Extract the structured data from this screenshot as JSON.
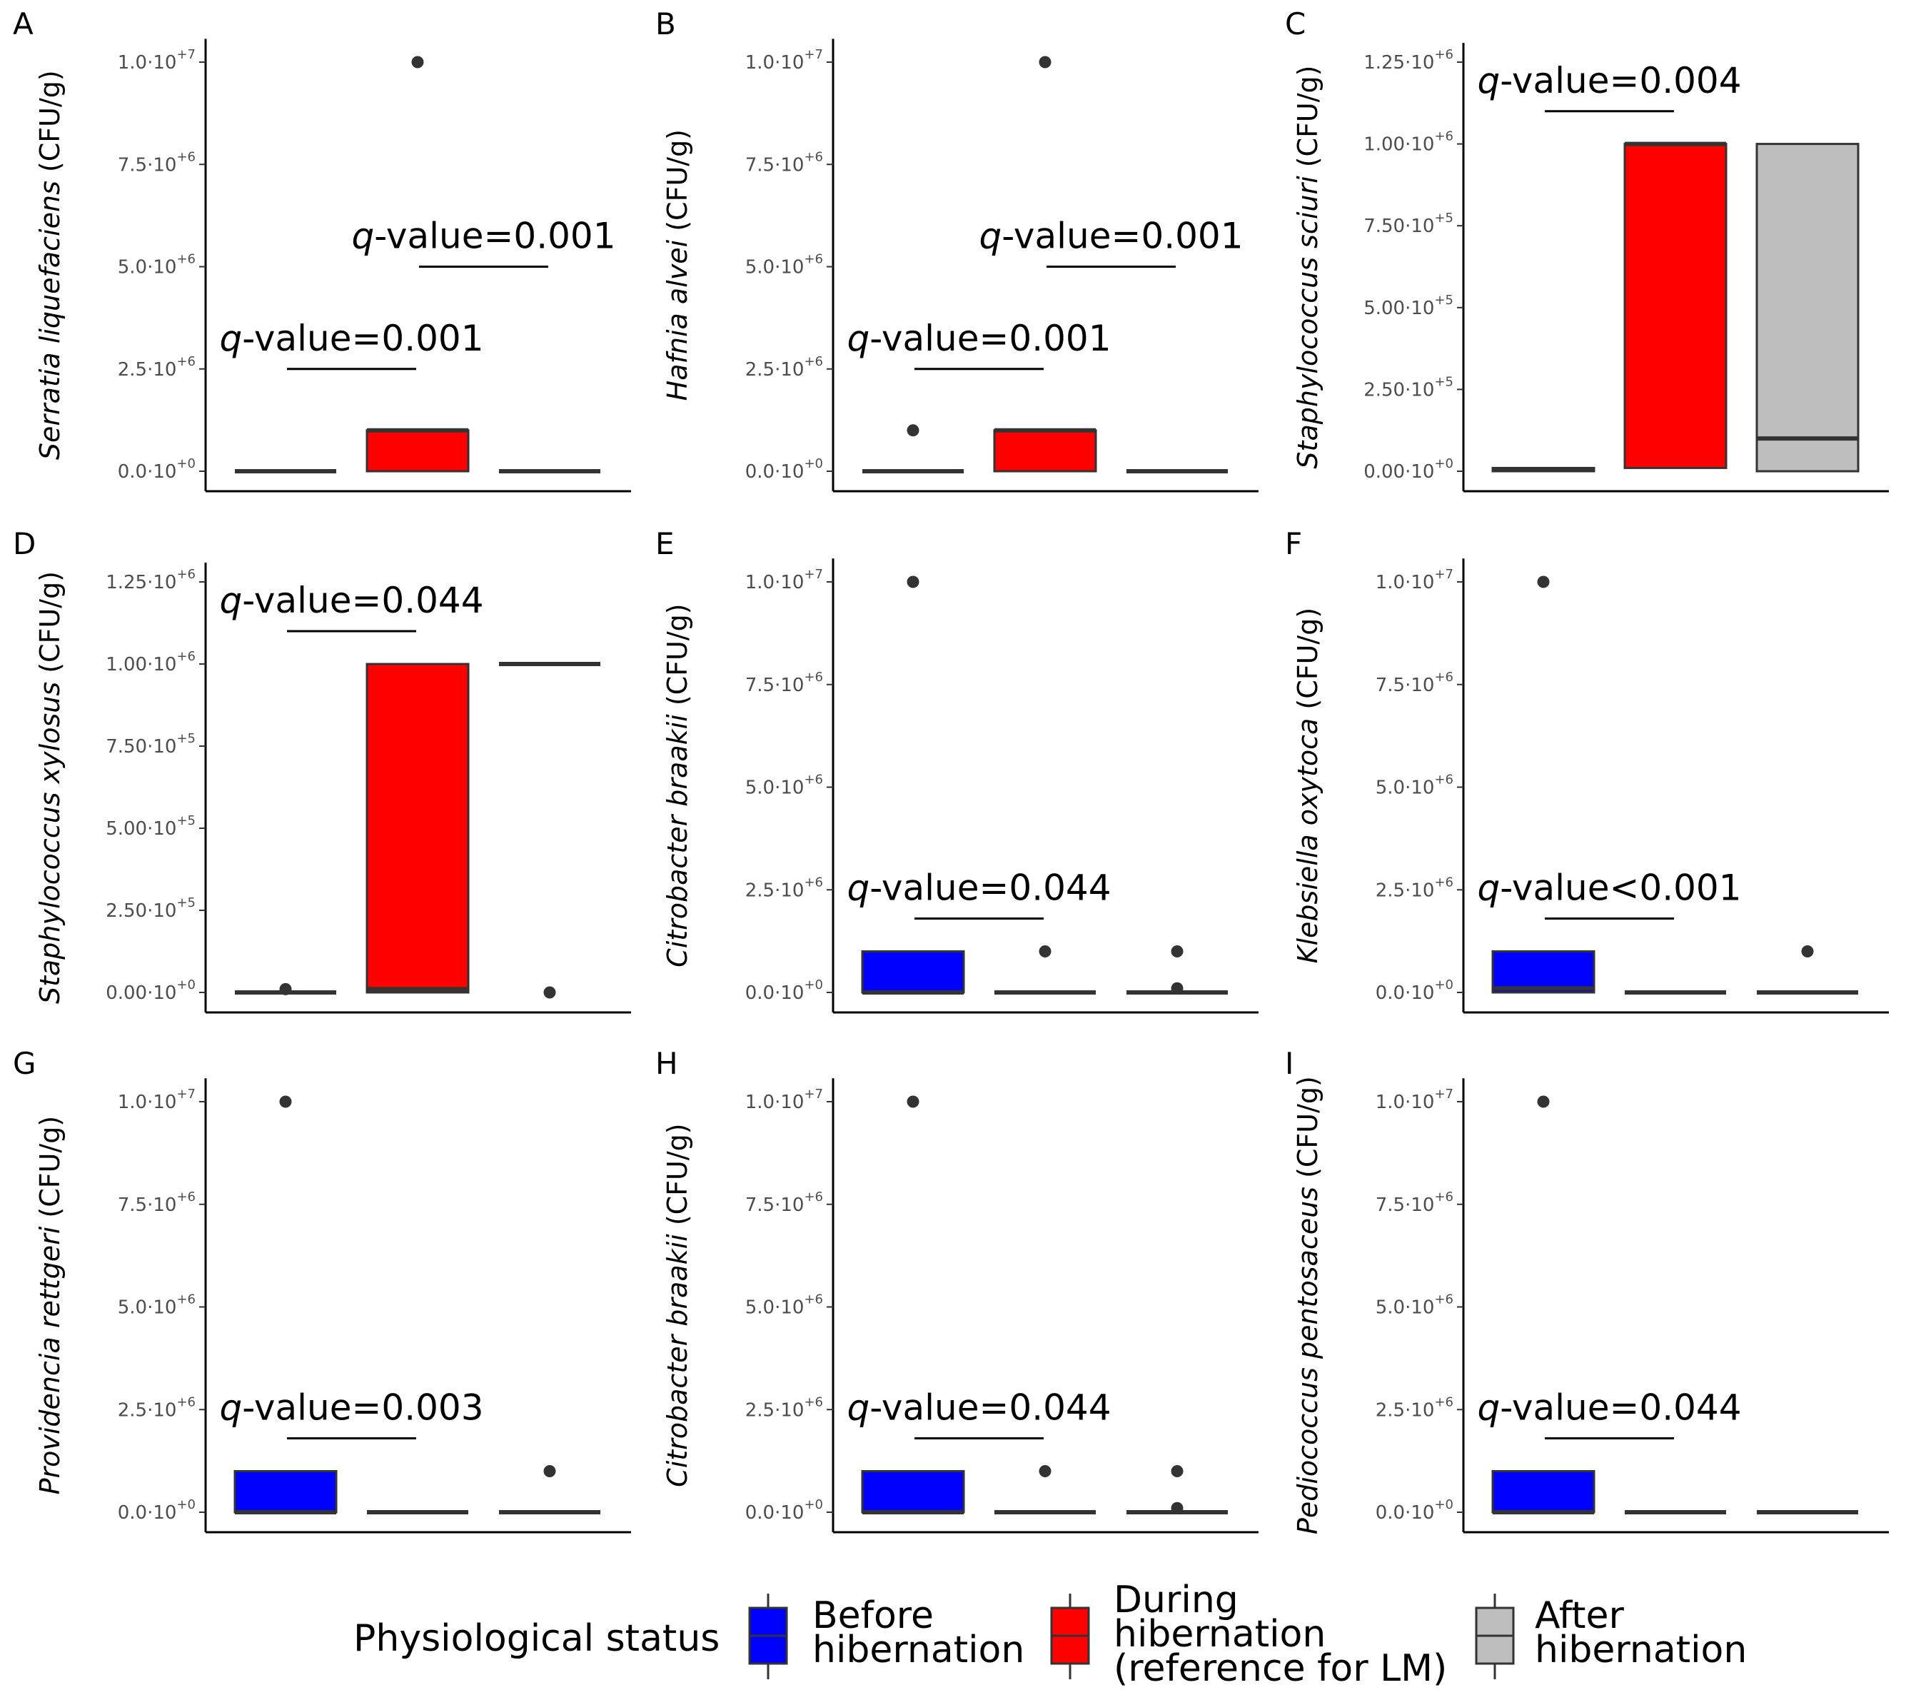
{
  "chart_data": [
    {
      "panel": "A",
      "type": "box",
      "ylabel_species": "Serratia liquefaciens",
      "ylabel_unit": " (CFU/g)",
      "ylim": [
        0,
        10500000
      ],
      "ticks": [
        {
          "v": 0,
          "mant": "0.0",
          "exp": "+0"
        },
        {
          "v": 2500000,
          "mant": "2.5",
          "exp": "+6"
        },
        {
          "v": 5000000,
          "mant": "5.0",
          "exp": "+6"
        },
        {
          "v": 7500000,
          "mant": "7.5",
          "exp": "+6"
        },
        {
          "v": 10000000,
          "mant": "1.0",
          "exp": "+7"
        }
      ],
      "boxes": [
        {
          "group": "Before hibernation",
          "color": "#0000ff",
          "q1": 0,
          "median": 0,
          "q3": 0,
          "outliers": []
        },
        {
          "group": "During hibernation",
          "color": "#ff0000",
          "q1": 0,
          "median": 1000000,
          "q3": 1000000,
          "outliers": [
            10000000
          ]
        },
        {
          "group": "After hibernation",
          "color": "#bebebe",
          "q1": 0,
          "median": 0,
          "q3": 0,
          "outliers": []
        }
      ],
      "annotations": [
        {
          "from": 0,
          "to": 1,
          "y": 2500000,
          "label": "-value=0.001"
        },
        {
          "from": 1,
          "to": 2,
          "y": 5000000,
          "label": "-value=0.001"
        }
      ]
    },
    {
      "panel": "B",
      "type": "box",
      "ylabel_species": "Hafnia alvei",
      "ylabel_unit": " (CFU/g)",
      "ylim": [
        0,
        10500000
      ],
      "ticks": [
        {
          "v": 0,
          "mant": "0.0",
          "exp": "+0"
        },
        {
          "v": 2500000,
          "mant": "2.5",
          "exp": "+6"
        },
        {
          "v": 5000000,
          "mant": "5.0",
          "exp": "+6"
        },
        {
          "v": 7500000,
          "mant": "7.5",
          "exp": "+6"
        },
        {
          "v": 10000000,
          "mant": "1.0",
          "exp": "+7"
        }
      ],
      "boxes": [
        {
          "group": "Before hibernation",
          "color": "#0000ff",
          "q1": 0,
          "median": 0,
          "q3": 0,
          "outliers": [
            1000000
          ]
        },
        {
          "group": "During hibernation",
          "color": "#ff0000",
          "q1": 0,
          "median": 1000000,
          "q3": 1000000,
          "outliers": [
            10000000
          ]
        },
        {
          "group": "After hibernation",
          "color": "#bebebe",
          "q1": 0,
          "median": 0,
          "q3": 0,
          "outliers": []
        }
      ],
      "annotations": [
        {
          "from": 0,
          "to": 1,
          "y": 2500000,
          "label": "-value=0.001"
        },
        {
          "from": 1,
          "to": 2,
          "y": 5000000,
          "label": "-value=0.001"
        }
      ]
    },
    {
      "panel": "C",
      "type": "box",
      "ylabel_species": "Staphylococcus sciuri",
      "ylabel_unit": " (CFU/g)",
      "ylim": [
        0,
        1300000
      ],
      "ticks": [
        {
          "v": 0,
          "mant": "0.00",
          "exp": "+0"
        },
        {
          "v": 250000,
          "mant": "2.50",
          "exp": "+5"
        },
        {
          "v": 500000,
          "mant": "5.00",
          "exp": "+5"
        },
        {
          "v": 750000,
          "mant": "7.50",
          "exp": "+5"
        },
        {
          "v": 1000000,
          "mant": "1.00",
          "exp": "+6"
        },
        {
          "v": 1250000,
          "mant": "1.25",
          "exp": "+6"
        }
      ],
      "boxes": [
        {
          "group": "Before hibernation",
          "color": "#0000ff",
          "q1": 0,
          "median": 5000,
          "q3": 10000,
          "outliers": []
        },
        {
          "group": "During hibernation",
          "color": "#ff0000",
          "q1": 10000,
          "median": 1000000,
          "q3": 1000000,
          "outliers": []
        },
        {
          "group": "After hibernation",
          "color": "#bebebe",
          "q1": 0,
          "median": 100000,
          "q3": 1000000,
          "outliers": []
        }
      ],
      "annotations": [
        {
          "from": 0,
          "to": 1,
          "y": 1100000,
          "label": "-value=0.004"
        }
      ]
    },
    {
      "panel": "D",
      "type": "box",
      "ylabel_species": "Staphylococcus xylosus",
      "ylabel_unit": " (CFU/g)",
      "ylim": [
        0,
        1300000
      ],
      "ticks": [
        {
          "v": 0,
          "mant": "0.00",
          "exp": "+0"
        },
        {
          "v": 250000,
          "mant": "2.50",
          "exp": "+5"
        },
        {
          "v": 500000,
          "mant": "5.00",
          "exp": "+5"
        },
        {
          "v": 750000,
          "mant": "7.50",
          "exp": "+5"
        },
        {
          "v": 1000000,
          "mant": "1.00",
          "exp": "+6"
        },
        {
          "v": 1250000,
          "mant": "1.25",
          "exp": "+6"
        }
      ],
      "boxes": [
        {
          "group": "Before hibernation",
          "color": "#0000ff",
          "q1": 0,
          "median": 0,
          "q3": 0,
          "outliers": [
            10000
          ]
        },
        {
          "group": "During hibernation",
          "color": "#ff0000",
          "q1": 0,
          "median": 10000,
          "q3": 1000000,
          "outliers": []
        },
        {
          "group": "After hibernation",
          "color": "#bebebe",
          "q1": 1000000,
          "median": 1000000,
          "q3": 1000000,
          "outliers": [
            0
          ]
        }
      ],
      "annotations": [
        {
          "from": 0,
          "to": 1,
          "y": 1100000,
          "label": "-value=0.044"
        }
      ]
    },
    {
      "panel": "E",
      "type": "box",
      "ylabel_species": "Citrobacter braakii",
      "ylabel_unit": " (CFU/g)",
      "ylim": [
        0,
        10500000
      ],
      "ticks": [
        {
          "v": 0,
          "mant": "0.0",
          "exp": "+0"
        },
        {
          "v": 2500000,
          "mant": "2.5",
          "exp": "+6"
        },
        {
          "v": 5000000,
          "mant": "5.0",
          "exp": "+6"
        },
        {
          "v": 7500000,
          "mant": "7.5",
          "exp": "+6"
        },
        {
          "v": 10000000,
          "mant": "1.0",
          "exp": "+7"
        }
      ],
      "boxes": [
        {
          "group": "Before hibernation",
          "color": "#0000ff",
          "q1": 0,
          "median": 0,
          "q3": 1000000,
          "outliers": [
            10000000
          ]
        },
        {
          "group": "During hibernation",
          "color": "#ff0000",
          "q1": 0,
          "median": 0,
          "q3": 0,
          "outliers": [
            1000000
          ]
        },
        {
          "group": "After hibernation",
          "color": "#bebebe",
          "q1": 0,
          "median": 0,
          "q3": 0,
          "outliers": [
            1000000,
            100000
          ]
        }
      ],
      "annotations": [
        {
          "from": 0,
          "to": 1,
          "y": 1800000,
          "label": "-value=0.044"
        }
      ]
    },
    {
      "panel": "F",
      "type": "box",
      "ylabel_species": "Klebsiella oxytoca",
      "ylabel_unit": " (CFU/g)",
      "ylim": [
        0,
        10500000
      ],
      "ticks": [
        {
          "v": 0,
          "mant": "0.0",
          "exp": "+0"
        },
        {
          "v": 2500000,
          "mant": "2.5",
          "exp": "+6"
        },
        {
          "v": 5000000,
          "mant": "5.0",
          "exp": "+6"
        },
        {
          "v": 7500000,
          "mant": "7.5",
          "exp": "+6"
        },
        {
          "v": 10000000,
          "mant": "1.0",
          "exp": "+7"
        }
      ],
      "boxes": [
        {
          "group": "Before hibernation",
          "color": "#0000ff",
          "q1": 0,
          "median": 100000,
          "q3": 1000000,
          "outliers": [
            10000000
          ]
        },
        {
          "group": "During hibernation",
          "color": "#ff0000",
          "q1": 0,
          "median": 0,
          "q3": 0,
          "outliers": []
        },
        {
          "group": "After hibernation",
          "color": "#bebebe",
          "q1": 0,
          "median": 0,
          "q3": 0,
          "outliers": [
            1000000
          ]
        }
      ],
      "annotations": [
        {
          "from": 0,
          "to": 1,
          "y": 1800000,
          "label": "-value<0.001"
        }
      ]
    },
    {
      "panel": "G",
      "type": "box",
      "ylabel_species": "Providencia rettgeri",
      "ylabel_unit": " (CFU/g)",
      "ylim": [
        0,
        10500000
      ],
      "ticks": [
        {
          "v": 0,
          "mant": "0.0",
          "exp": "+0"
        },
        {
          "v": 2500000,
          "mant": "2.5",
          "exp": "+6"
        },
        {
          "v": 5000000,
          "mant": "5.0",
          "exp": "+6"
        },
        {
          "v": 7500000,
          "mant": "7.5",
          "exp": "+6"
        },
        {
          "v": 10000000,
          "mant": "1.0",
          "exp": "+7"
        }
      ],
      "boxes": [
        {
          "group": "Before hibernation",
          "color": "#0000ff",
          "q1": 0,
          "median": 0,
          "q3": 1000000,
          "outliers": [
            10000000
          ]
        },
        {
          "group": "During hibernation",
          "color": "#ff0000",
          "q1": 0,
          "median": 0,
          "q3": 0,
          "outliers": []
        },
        {
          "group": "After hibernation",
          "color": "#bebebe",
          "q1": 0,
          "median": 0,
          "q3": 0,
          "outliers": [
            1000000
          ]
        }
      ],
      "annotations": [
        {
          "from": 0,
          "to": 1,
          "y": 1800000,
          "label": "-value=0.003"
        }
      ]
    },
    {
      "panel": "H",
      "type": "box",
      "ylabel_species": "Citrobacter braakii",
      "ylabel_unit": " (CFU/g)",
      "ylim": [
        0,
        10500000
      ],
      "ticks": [
        {
          "v": 0,
          "mant": "0.0",
          "exp": "+0"
        },
        {
          "v": 2500000,
          "mant": "2.5",
          "exp": "+6"
        },
        {
          "v": 5000000,
          "mant": "5.0",
          "exp": "+6"
        },
        {
          "v": 7500000,
          "mant": "7.5",
          "exp": "+6"
        },
        {
          "v": 10000000,
          "mant": "1.0",
          "exp": "+7"
        }
      ],
      "boxes": [
        {
          "group": "Before hibernation",
          "color": "#0000ff",
          "q1": 0,
          "median": 0,
          "q3": 1000000,
          "outliers": [
            10000000
          ]
        },
        {
          "group": "During hibernation",
          "color": "#ff0000",
          "q1": 0,
          "median": 0,
          "q3": 0,
          "outliers": [
            1000000
          ]
        },
        {
          "group": "After hibernation",
          "color": "#bebebe",
          "q1": 0,
          "median": 0,
          "q3": 0,
          "outliers": [
            1000000,
            100000
          ]
        }
      ],
      "annotations": [
        {
          "from": 0,
          "to": 1,
          "y": 1800000,
          "label": "-value=0.044"
        }
      ]
    },
    {
      "panel": "I",
      "type": "box",
      "ylabel_species": "Pediococcus pentosaceus",
      "ylabel_unit": " (CFU/g)",
      "ylim": [
        0,
        10500000
      ],
      "ticks": [
        {
          "v": 0,
          "mant": "0.0",
          "exp": "+0"
        },
        {
          "v": 2500000,
          "mant": "2.5",
          "exp": "+6"
        },
        {
          "v": 5000000,
          "mant": "5.0",
          "exp": "+6"
        },
        {
          "v": 7500000,
          "mant": "7.5",
          "exp": "+6"
        },
        {
          "v": 10000000,
          "mant": "1.0",
          "exp": "+7"
        }
      ],
      "boxes": [
        {
          "group": "Before hibernation",
          "color": "#0000ff",
          "q1": 0,
          "median": 0,
          "q3": 1000000,
          "outliers": [
            10000000
          ]
        },
        {
          "group": "During hibernation",
          "color": "#ff0000",
          "q1": 0,
          "median": 0,
          "q3": 0,
          "outliers": []
        },
        {
          "group": "After hibernation",
          "color": "#bebebe",
          "q1": 0,
          "median": 0,
          "q3": 0,
          "outliers": []
        }
      ],
      "annotations": [
        {
          "from": 0,
          "to": 1,
          "y": 1800000,
          "label": "-value=0.044"
        }
      ]
    }
  ],
  "q_symbol": "q",
  "tick_multiplier": "·10",
  "legend": {
    "title": "Physiological status",
    "items": [
      {
        "color": "#0000ff",
        "lines": [
          "Before",
          "hibernation"
        ]
      },
      {
        "color": "#ff0000",
        "lines": [
          "During",
          "hibernation",
          "(reference for LM)"
        ]
      },
      {
        "color": "#bebebe",
        "lines": [
          "After",
          "hibernation"
        ]
      }
    ]
  }
}
